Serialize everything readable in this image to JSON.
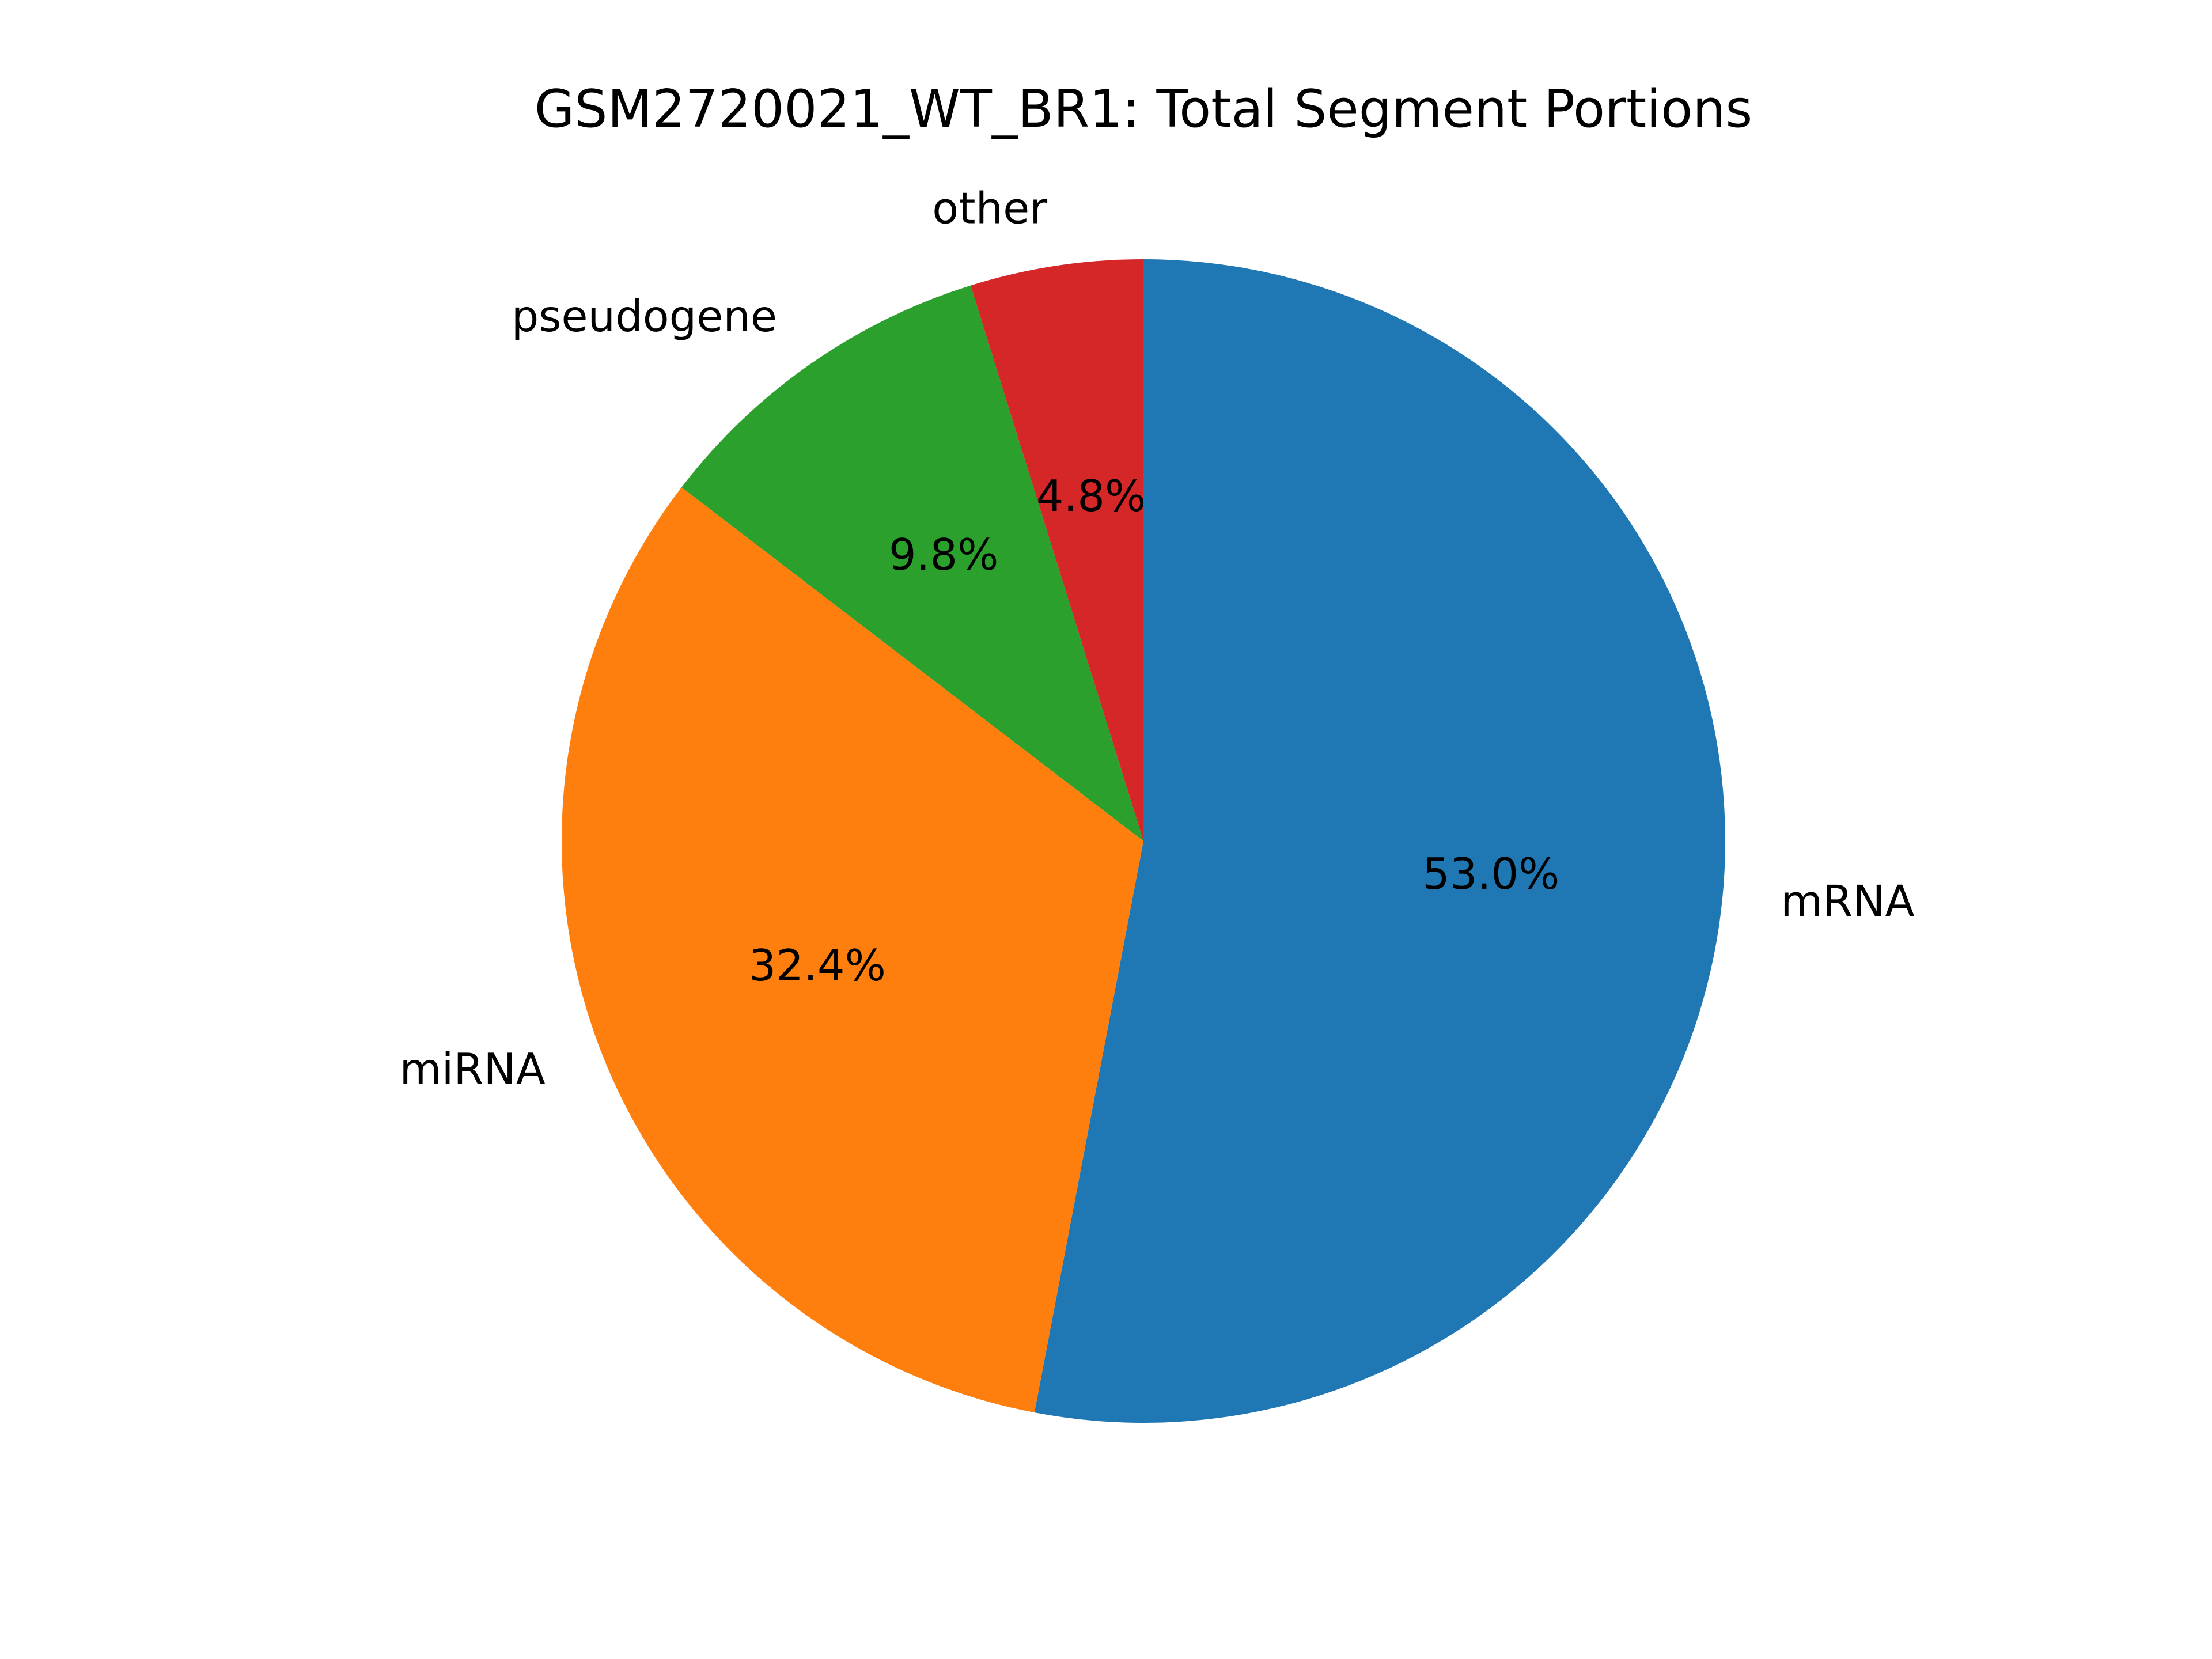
{
  "chart_data": {
    "type": "pie",
    "title": "GSM2720021_WT_BR1: Total Segment Portions",
    "start_angle_deg": 90,
    "direction": "clockwise",
    "slices": [
      {
        "label": "mRNA",
        "value": 53.0,
        "pct_label": "53.0%",
        "color": "#1f77b4"
      },
      {
        "label": "miRNA",
        "value": 32.4,
        "pct_label": "32.4%",
        "color": "#ff7f0e"
      },
      {
        "label": "pseudogene",
        "value": 9.8,
        "pct_label": "9.8%",
        "color": "#2ca02c"
      },
      {
        "label": "other",
        "value": 4.8,
        "pct_label": "4.8%",
        "color": "#d62728"
      }
    ]
  }
}
